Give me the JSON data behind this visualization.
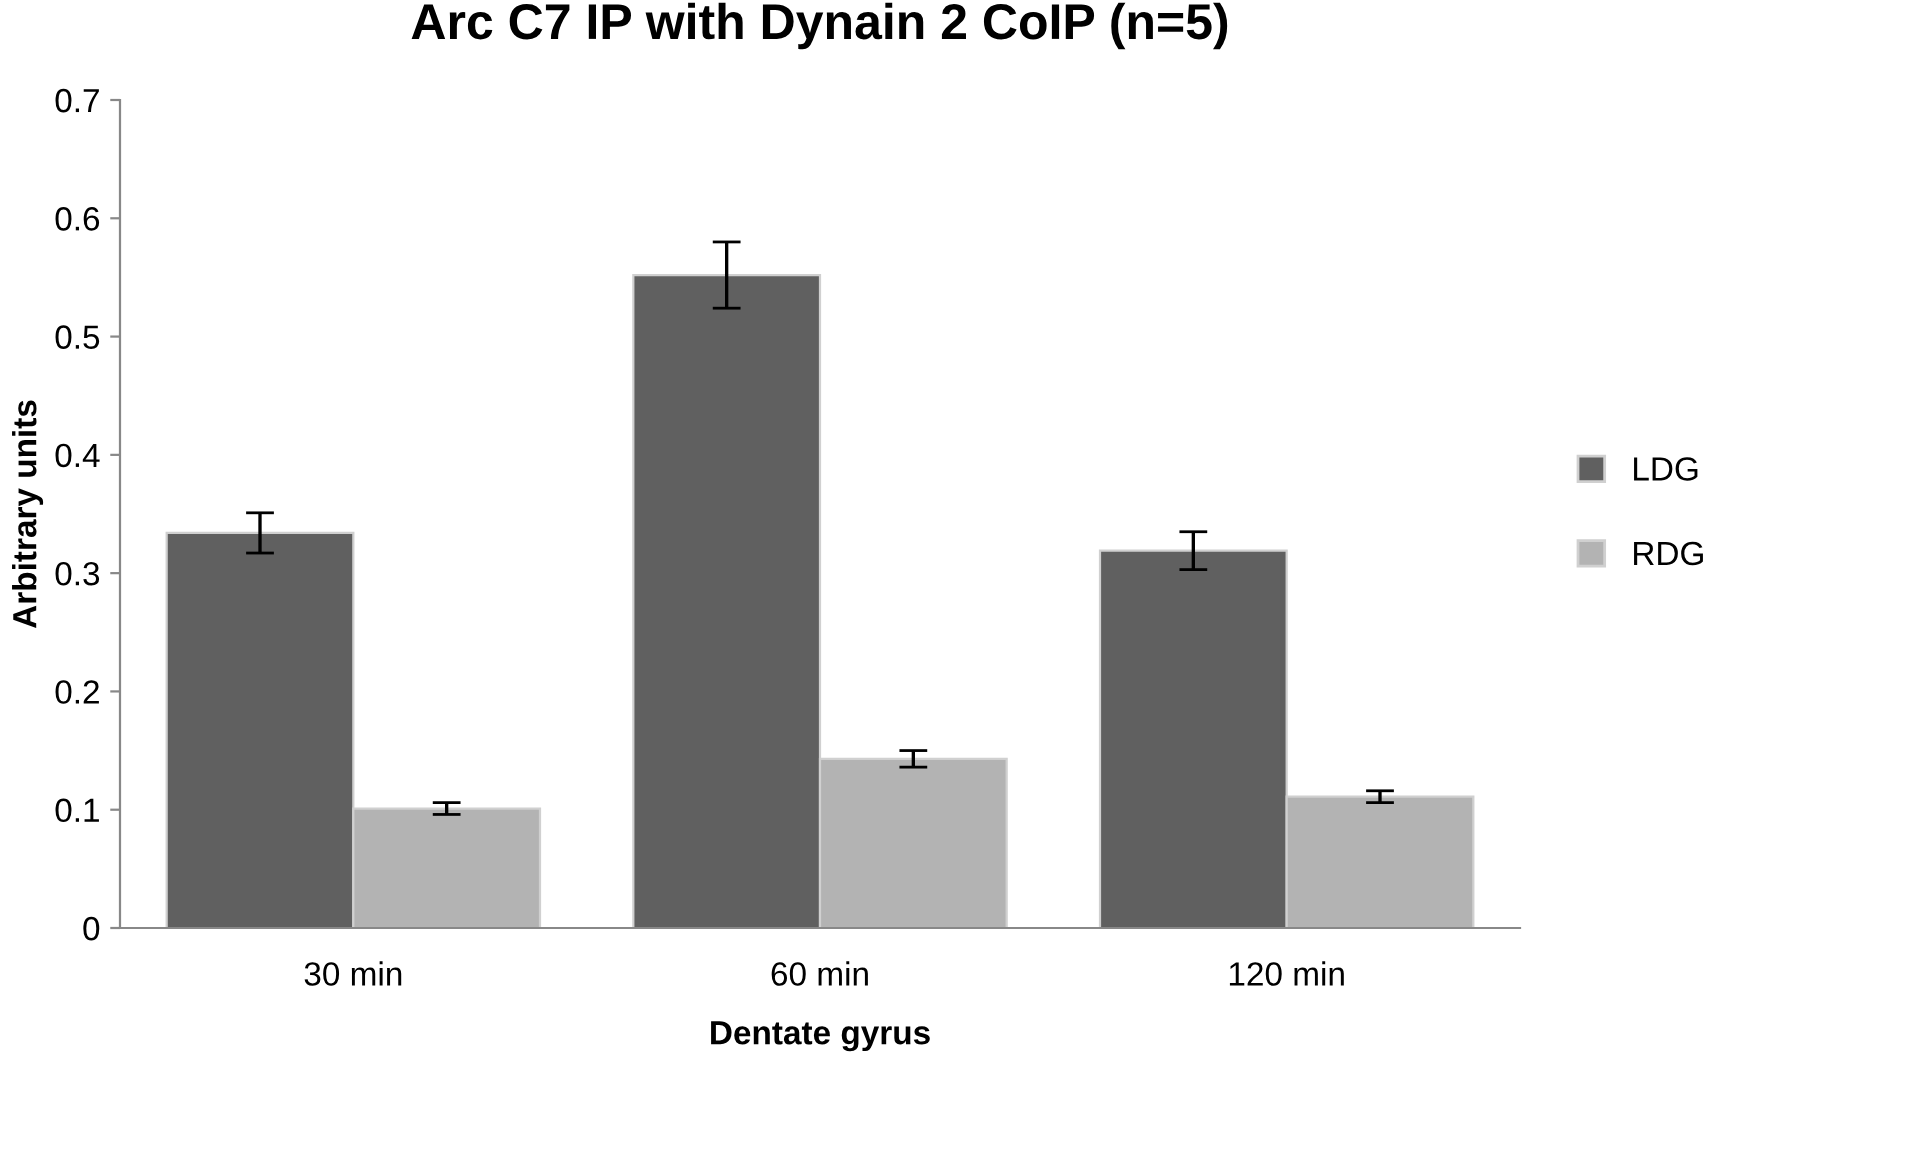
{
  "chart_data": {
    "type": "bar",
    "title": "Arc C7 IP with Dynain 2 CoIP (n=5)",
    "xlabel": "Dentate gyrus",
    "ylabel": "Arbitrary units",
    "categories": [
      "30 min",
      "60 min",
      "120 min"
    ],
    "series": [
      {
        "name": "LDG",
        "color": "#606060",
        "values": [
          0.334,
          0.552,
          0.319
        ],
        "errors": [
          0.017,
          0.028,
          0.016
        ]
      },
      {
        "name": "RDG",
        "color": "#b3b3b3",
        "values": [
          0.101,
          0.143,
          0.111
        ],
        "errors": [
          0.005,
          0.007,
          0.005
        ]
      }
    ],
    "ylim": [
      0,
      0.7
    ],
    "yticks": [
      0,
      0.1,
      0.2,
      0.3,
      0.4,
      0.5,
      0.6,
      0.7
    ],
    "grid": false,
    "legend": "right"
  }
}
